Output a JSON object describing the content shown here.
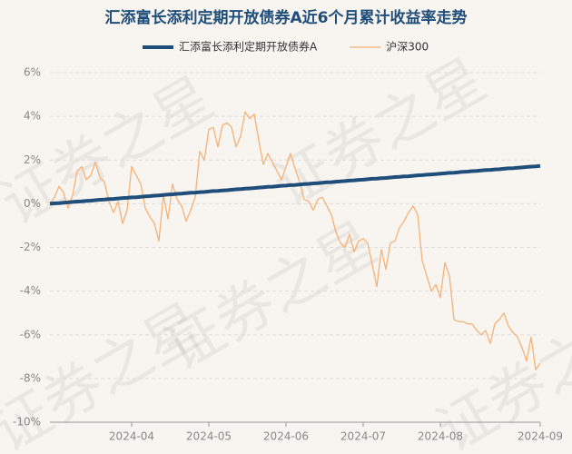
{
  "chart_data": {
    "type": "line",
    "title": "汇添富长添利定期开放债券A近6个月累计收益率走势",
    "watermark": "证券之星",
    "categories": [
      null,
      null,
      null,
      null,
      null,
      null,
      null,
      null,
      null,
      null,
      null,
      null,
      null,
      null,
      null,
      null,
      null,
      null,
      "2024-04",
      null,
      null,
      null,
      null,
      null,
      null,
      null,
      null,
      null,
      null,
      null,
      null,
      null,
      null,
      null,
      null,
      "2024-05",
      null,
      null,
      null,
      null,
      null,
      null,
      null,
      null,
      null,
      null,
      null,
      null,
      null,
      null,
      null,
      null,
      "2024-06",
      null,
      null,
      null,
      null,
      null,
      null,
      null,
      null,
      null,
      null,
      null,
      null,
      null,
      null,
      null,
      null,
      "2024-07",
      null,
      null,
      null,
      null,
      null,
      null,
      null,
      null,
      null,
      null,
      null,
      null,
      null,
      null,
      null,
      null,
      "2024-08",
      null,
      null,
      null,
      null,
      null,
      null,
      null,
      null,
      null,
      null,
      null,
      null,
      null,
      null,
      null,
      null,
      null,
      null,
      null,
      null,
      null,
      "2024-09"
    ],
    "series": [
      {
        "name": "汇添富长添利定期开放债券A",
        "color": "#1f4e7a",
        "width": 4,
        "values": [
          0,
          0.02,
          0.03,
          0.05,
          0.06,
          0.08,
          0.1,
          0.11,
          0.13,
          0.14,
          0.16,
          0.18,
          0.19,
          0.21,
          0.22,
          0.24,
          0.26,
          0.27,
          0.29,
          0.3,
          0.32,
          0.34,
          0.35,
          0.37,
          0.38,
          0.4,
          0.42,
          0.43,
          0.45,
          0.46,
          0.48,
          0.5,
          0.51,
          0.53,
          0.54,
          0.56,
          0.58,
          0.59,
          0.61,
          0.62,
          0.64,
          0.66,
          0.67,
          0.69,
          0.7,
          0.72,
          0.74,
          0.75,
          0.77,
          0.78,
          0.8,
          0.82,
          0.83,
          0.85,
          0.86,
          0.88,
          0.9,
          0.91,
          0.93,
          0.94,
          0.96,
          0.98,
          0.99,
          1.01,
          1.02,
          1.04,
          1.06,
          1.07,
          1.09,
          1.1,
          1.12,
          1.14,
          1.15,
          1.17,
          1.18,
          1.2,
          1.22,
          1.23,
          1.25,
          1.26,
          1.28,
          1.3,
          1.31,
          1.33,
          1.34,
          1.36,
          1.38,
          1.39,
          1.41,
          1.42,
          1.44,
          1.46,
          1.47,
          1.49,
          1.5,
          1.52,
          1.54,
          1.55,
          1.57,
          1.58,
          1.6,
          1.62,
          1.63,
          1.65,
          1.66,
          1.68,
          1.7,
          1.71,
          1.73
        ]
      },
      {
        "name": "沪深300",
        "color": "#f5b278",
        "width": 1.3,
        "values": [
          0,
          0.3,
          0.8,
          0.5,
          -0.2,
          0.4,
          1.5,
          1.7,
          1.1,
          1.3,
          1.9,
          1.2,
          1.0,
          0.1,
          -0.4,
          0.1,
          -0.9,
          -0.3,
          1.7,
          1.3,
          0.9,
          -0.2,
          -0.6,
          -0.9,
          -1.7,
          0.4,
          -0.7,
          0.9,
          0.2,
          -0.1,
          -0.8,
          -0.3,
          0.3,
          2.4,
          2.0,
          3.4,
          3.5,
          2.6,
          3.6,
          3.7,
          3.5,
          2.6,
          3.1,
          4.2,
          3.9,
          4.1,
          2.9,
          1.8,
          2.3,
          1.9,
          1.5,
          1.1,
          1.7,
          2.3,
          1.6,
          1.0,
          0.2,
          0.1,
          -0.3,
          0.2,
          0.3,
          -0.1,
          -0.5,
          -1.3,
          -1.8,
          -2.0,
          -1.4,
          -2.2,
          -1.7,
          -1.6,
          -1.8,
          -2.8,
          -3.8,
          -2.1,
          -3.0,
          -1.8,
          -1.7,
          -1.1,
          -0.8,
          -0.4,
          -0.1,
          -0.5,
          -2.6,
          -3.3,
          -4.0,
          -3.7,
          -4.3,
          -2.7,
          -3.3,
          -5.3,
          -5.4,
          -5.4,
          -5.5,
          -5.5,
          -5.8,
          -6.0,
          -5.8,
          -6.4,
          -5.5,
          -5.3,
          -5.0,
          -5.6,
          -5.9,
          -6.1,
          -6.6,
          -7.2,
          -6.1,
          -7.6,
          -7.3
        ]
      }
    ],
    "ylim": [
      -10,
      6
    ],
    "yticks": [
      {
        "value": -10,
        "label": "-10%"
      },
      {
        "value": -8,
        "label": "-8%"
      },
      {
        "value": -6,
        "label": "-6%"
      },
      {
        "value": -4,
        "label": "-4%"
      },
      {
        "value": -2,
        "label": "-2%"
      },
      {
        "value": 0,
        "label": "0%"
      },
      {
        "value": 2,
        "label": "2%"
      },
      {
        "value": 4,
        "label": "4%"
      },
      {
        "value": 6,
        "label": "6%"
      }
    ],
    "grid": true
  }
}
